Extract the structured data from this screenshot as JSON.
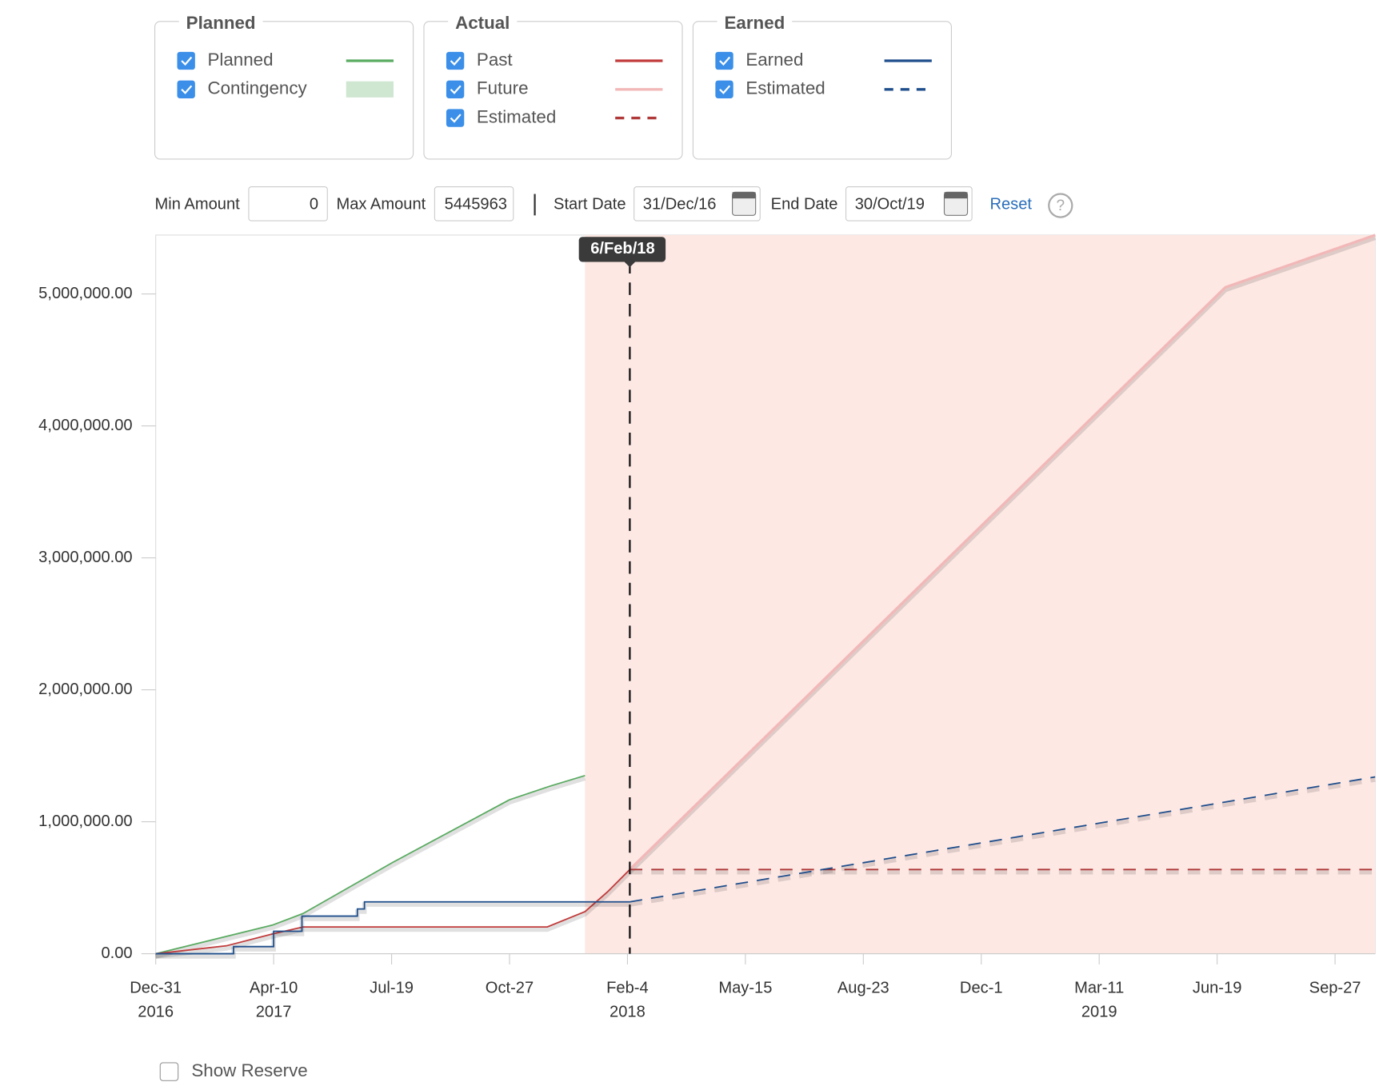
{
  "legend_groups": [
    {
      "title": "Planned",
      "items": [
        {
          "name": "Planned",
          "color": "#5aab61",
          "style": "solid"
        },
        {
          "name": "Contingency",
          "color": "#cfe6d1",
          "style": "band"
        }
      ]
    },
    {
      "title": "Actual",
      "items": [
        {
          "name": "Past",
          "color": "#c23b3b",
          "style": "solid"
        },
        {
          "name": "Future",
          "color": "#f2b8b8",
          "style": "solid"
        },
        {
          "name": "Estimated",
          "color": "#b03a3a",
          "style": "dashed"
        }
      ]
    },
    {
      "title": "Earned",
      "items": [
        {
          "name": "Earned",
          "color": "#1f4e8c",
          "style": "solid"
        },
        {
          "name": "Estimated",
          "color": "#1f4e8c",
          "style": "dashed"
        }
      ]
    }
  ],
  "controls": {
    "min_label": "Min Amount",
    "min_value": "0",
    "max_label": "Max Amount",
    "max_value": "5445963",
    "start_label": "Start Date",
    "start_value": "31/Dec/16",
    "end_label": "End Date",
    "end_value": "30/Oct/19",
    "reset": "Reset",
    "help": "?",
    "show_reserve": "Show Reserve"
  },
  "chart_data": {
    "type": "line",
    "xlim": [
      0,
      1034
    ],
    "ylim": [
      0,
      5445963
    ],
    "xticks": [
      {
        "value": 0,
        "label": "Dec-31"
      },
      {
        "value": 100,
        "label": "Apr-10"
      },
      {
        "value": 200,
        "label": "Jul-19"
      },
      {
        "value": 300,
        "label": "Oct-27"
      },
      {
        "value": 400,
        "label": "Feb-4"
      },
      {
        "value": 500,
        "label": "May-15"
      },
      {
        "value": 600,
        "label": "Aug-23"
      },
      {
        "value": 700,
        "label": "Dec-1"
      },
      {
        "value": 800,
        "label": "Mar-11"
      },
      {
        "value": 900,
        "label": "Jun-19"
      },
      {
        "value": 1000,
        "label": "Sep-27"
      }
    ],
    "xtick_years": [
      {
        "value": 0,
        "label": "2016"
      },
      {
        "value": 100,
        "label": "2017"
      },
      {
        "value": 400,
        "label": "2018"
      },
      {
        "value": 800,
        "label": "2019"
      }
    ],
    "yticks": [
      {
        "value": 0,
        "label": "0.00"
      },
      {
        "value": 1000000,
        "label": "1,000,000.00"
      },
      {
        "value": 2000000,
        "label": "2,000,000.00"
      },
      {
        "value": 3000000,
        "label": "3,000,000.00"
      },
      {
        "value": 4000000,
        "label": "4,000,000.00"
      },
      {
        "value": 5000000,
        "label": "5,000,000.00"
      }
    ],
    "shade_from": 364,
    "shade_color": "#fde8e4",
    "marker": {
      "x": 402,
      "label": "6/Feb/18"
    },
    "series": [
      {
        "color": "#5aab61",
        "dash": false,
        "x": [
          0,
          99,
          125,
          201,
          300,
          334,
          364
        ],
        "values": [
          0,
          217000,
          305000,
          692000,
          1167000,
          1269000,
          1350000
        ]
      },
      {
        "color": "#f2b8b8",
        "dash": false,
        "x": [
          402,
          907,
          1034
        ],
        "values": [
          638000,
          5050000,
          5445963
        ]
      },
      {
        "color": "#b03a3a",
        "dash": true,
        "x": [
          402,
          1034
        ],
        "values": [
          638000,
          638000
        ]
      },
      {
        "color": "#1f4e8c",
        "dash": true,
        "x": [
          402,
          1034
        ],
        "values": [
          393000,
          1340000
        ]
      },
      {
        "color": "#c23b3b",
        "dash": false,
        "x": [
          0,
          60,
          99,
          125,
          332,
          364,
          383,
          402
        ],
        "values": [
          0,
          60000,
          150000,
          203000,
          203000,
          319000,
          468000,
          638000
        ]
      },
      {
        "color": "#1f4e8c",
        "dash": false,
        "x": [
          0,
          66,
          66,
          100,
          100,
          124,
          124,
          171,
          171,
          177,
          177,
          402
        ],
        "values": [
          0,
          0,
          54000,
          54000,
          170000,
          170000,
          285000,
          285000,
          339000,
          339000,
          393000,
          393000
        ]
      }
    ]
  }
}
